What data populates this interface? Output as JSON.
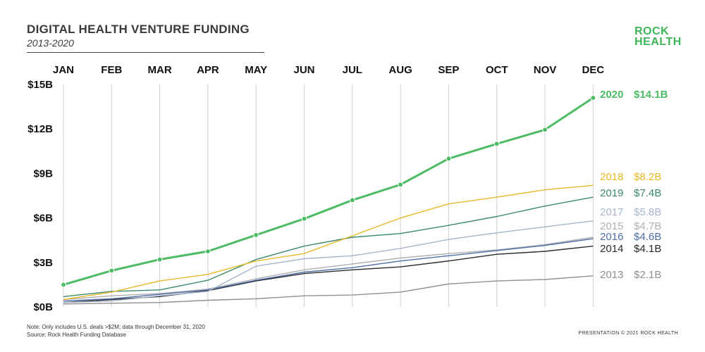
{
  "header": {
    "title": "DIGITAL HEALTH VENTURE FUNDING",
    "subtitle": "2013-2020",
    "logo_line1": "ROCK",
    "logo_line2": "HEALTH"
  },
  "footer": {
    "note_line1": "Note: Only includes U.S. deals >$2M; data through December 31, 2020",
    "note_line2": "Source: Rock Health Funding Database",
    "credit": "PRESENTATION © 2021 ROCK HEALTH"
  },
  "chart_data": {
    "type": "line",
    "title": "DIGITAL HEALTH VENTURE FUNDING",
    "subtitle": "2013-2020",
    "categories": [
      "JAN",
      "FEB",
      "MAR",
      "APR",
      "MAY",
      "JUN",
      "JUL",
      "AUG",
      "SEP",
      "OCT",
      "NOV",
      "DEC"
    ],
    "y_ticks": [
      0,
      3,
      6,
      9,
      12,
      15
    ],
    "y_tick_labels": [
      "$0B",
      "$3B",
      "$6B",
      "$9B",
      "$12B",
      "$15B"
    ],
    "ylim": [
      0,
      15
    ],
    "unit": "billion USD (cumulative)",
    "grid": "vertical gridlines at each month",
    "legend": "end-of-line labels (right)",
    "series": [
      {
        "name": "2013",
        "end_label": "$2.1B",
        "color": "#8f8f8f",
        "values": [
          0.2,
          0.25,
          0.3,
          0.45,
          0.55,
          0.75,
          0.8,
          1.0,
          1.55,
          1.75,
          1.85,
          2.1
        ]
      },
      {
        "name": "2014",
        "end_label": "$4.1B",
        "color": "#2b2b2b",
        "values": [
          0.3,
          0.5,
          0.7,
          1.1,
          1.75,
          2.25,
          2.5,
          2.7,
          3.1,
          3.55,
          3.75,
          4.1
        ]
      },
      {
        "name": "2015",
        "end_label": "$4.7B",
        "color": "#b0b0b0",
        "values": [
          0.5,
          0.75,
          0.9,
          1.2,
          1.9,
          2.5,
          2.9,
          3.3,
          3.6,
          3.85,
          4.2,
          4.7
        ]
      },
      {
        "name": "2016",
        "end_label": "$4.6B",
        "color": "#4f6da6",
        "values": [
          0.4,
          0.55,
          0.85,
          1.15,
          1.8,
          2.35,
          2.65,
          3.1,
          3.45,
          3.8,
          4.15,
          4.6
        ]
      },
      {
        "name": "2017",
        "end_label": "$5.8B",
        "color": "#a7b4cc",
        "values": [
          0.3,
          0.4,
          0.75,
          1.05,
          2.75,
          3.25,
          3.45,
          3.95,
          4.55,
          5.0,
          5.4,
          5.8
        ]
      },
      {
        "name": "2019",
        "end_label": "$7.4B",
        "color": "#3c8a6c",
        "values": [
          0.7,
          1.05,
          1.15,
          1.8,
          3.2,
          4.1,
          4.7,
          4.95,
          5.5,
          6.1,
          6.8,
          7.4
        ]
      },
      {
        "name": "2018",
        "end_label": "$8.2B",
        "color": "#e6b92b",
        "values": [
          0.5,
          1.0,
          1.75,
          2.2,
          3.1,
          3.6,
          4.8,
          6.0,
          6.95,
          7.4,
          7.9,
          8.2
        ]
      },
      {
        "name": "2020",
        "end_label": "$14.1B",
        "color": "#4dbb63",
        "values": [
          1.5,
          2.45,
          3.2,
          3.75,
          4.85,
          5.95,
          7.2,
          8.25,
          10.0,
          11.0,
          11.95,
          14.1
        ]
      }
    ]
  }
}
